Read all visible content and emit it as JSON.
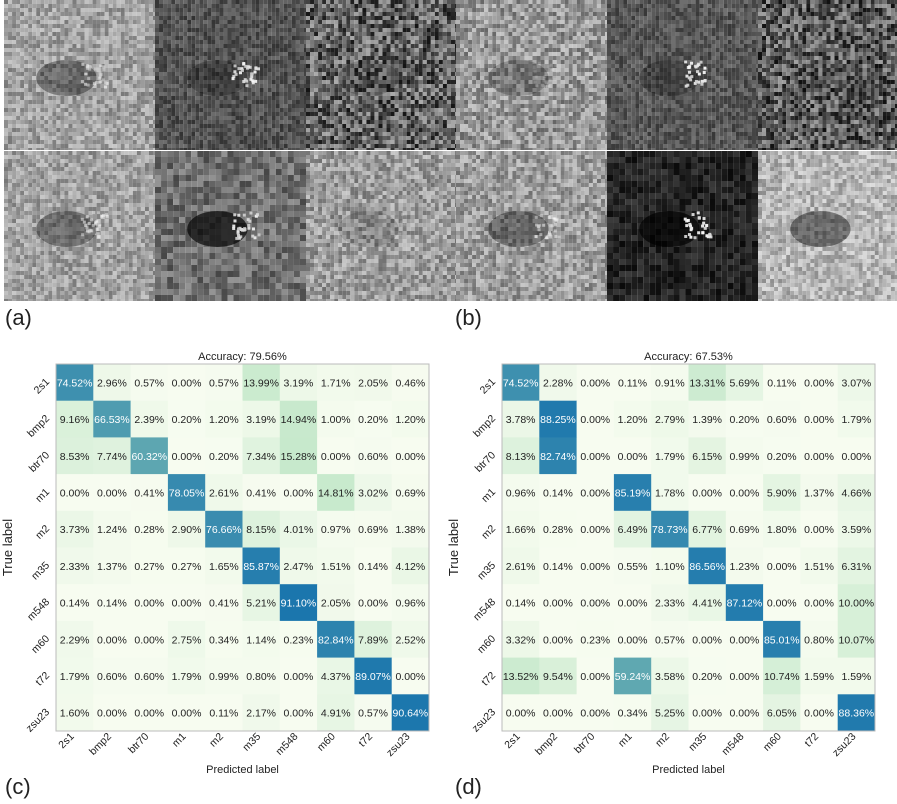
{
  "panels": {
    "a": "(a)",
    "b": "(b)",
    "c": "(c)",
    "d": "(d)"
  },
  "colors": {
    "low": "#f7fcf0",
    "mid": "#a8ddb5",
    "high": "#0868ac",
    "frame": "#bbbbbb"
  },
  "chart_data": [
    {
      "type": "heatmap",
      "title": "Accuracy: 79.56%",
      "xlabel": "Predicted label",
      "ylabel": "True label",
      "labels": [
        "2s1",
        "bmp2",
        "btr70",
        "m1",
        "m2",
        "m35",
        "m548",
        "m60",
        "t72",
        "zsu23"
      ],
      "values": [
        [
          74.52,
          2.96,
          0.57,
          0.0,
          0.57,
          13.99,
          3.19,
          1.71,
          2.05,
          0.46
        ],
        [
          9.16,
          66.53,
          2.39,
          0.2,
          1.2,
          3.19,
          14.94,
          1.0,
          0.2,
          1.2
        ],
        [
          8.53,
          7.74,
          60.32,
          0.0,
          0.2,
          7.34,
          15.28,
          0.0,
          0.6,
          0.0
        ],
        [
          0.0,
          0.0,
          0.41,
          78.05,
          2.61,
          0.41,
          0.0,
          14.81,
          3.02,
          0.69
        ],
        [
          3.73,
          1.24,
          0.28,
          2.9,
          76.66,
          8.15,
          4.01,
          0.97,
          0.69,
          1.38
        ],
        [
          2.33,
          1.37,
          0.27,
          0.27,
          1.65,
          85.87,
          2.47,
          1.51,
          0.14,
          4.12
        ],
        [
          0.14,
          0.14,
          0.0,
          0.0,
          0.41,
          5.21,
          91.1,
          2.05,
          0.0,
          0.96
        ],
        [
          2.29,
          0.0,
          0.0,
          2.75,
          0.34,
          1.14,
          0.23,
          82.84,
          7.89,
          2.52
        ],
        [
          1.79,
          0.6,
          0.6,
          1.79,
          0.99,
          0.8,
          0.0,
          4.37,
          89.07,
          0.0
        ],
        [
          1.6,
          0.0,
          0.0,
          0.0,
          0.11,
          2.17,
          0.0,
          4.91,
          0.57,
          90.64
        ]
      ]
    },
    {
      "type": "heatmap",
      "title": "Accuracy: 67.53%",
      "xlabel": "Predicted label",
      "ylabel": "True label",
      "labels": [
        "2s1",
        "bmp2",
        "btr70",
        "m1",
        "m2",
        "m35",
        "m548",
        "m60",
        "t72",
        "zsu23"
      ],
      "values": [
        [
          74.52,
          2.28,
          0.0,
          0.11,
          0.91,
          13.31,
          5.69,
          0.11,
          0.0,
          3.07
        ],
        [
          3.78,
          88.25,
          0.0,
          1.2,
          2.79,
          1.39,
          0.2,
          0.6,
          0.0,
          1.79
        ],
        [
          8.13,
          82.74,
          0.0,
          0.0,
          1.79,
          6.15,
          0.99,
          0.2,
          0.0,
          0.0
        ],
        [
          0.96,
          0.14,
          0.0,
          85.19,
          1.78,
          0.0,
          0.0,
          5.9,
          1.37,
          4.66
        ],
        [
          1.66,
          0.28,
          0.0,
          6.49,
          78.73,
          6.77,
          0.69,
          1.8,
          0.0,
          3.59
        ],
        [
          2.61,
          0.14,
          0.0,
          0.55,
          1.1,
          86.56,
          1.23,
          0.0,
          1.51,
          6.31
        ],
        [
          0.14,
          0.0,
          0.0,
          0.0,
          2.33,
          4.41,
          87.12,
          0.0,
          0.0,
          10.0
        ],
        [
          3.32,
          0.0,
          0.23,
          0.0,
          0.57,
          0.0,
          0.0,
          85.01,
          0.8,
          10.07
        ],
        [
          13.52,
          9.54,
          0.0,
          59.24,
          3.58,
          0.2,
          0.0,
          10.74,
          1.59,
          1.59
        ],
        [
          0.0,
          0.0,
          0.0,
          0.34,
          5.25,
          0.0,
          0.0,
          6.05,
          0.0,
          88.36
        ]
      ]
    }
  ]
}
